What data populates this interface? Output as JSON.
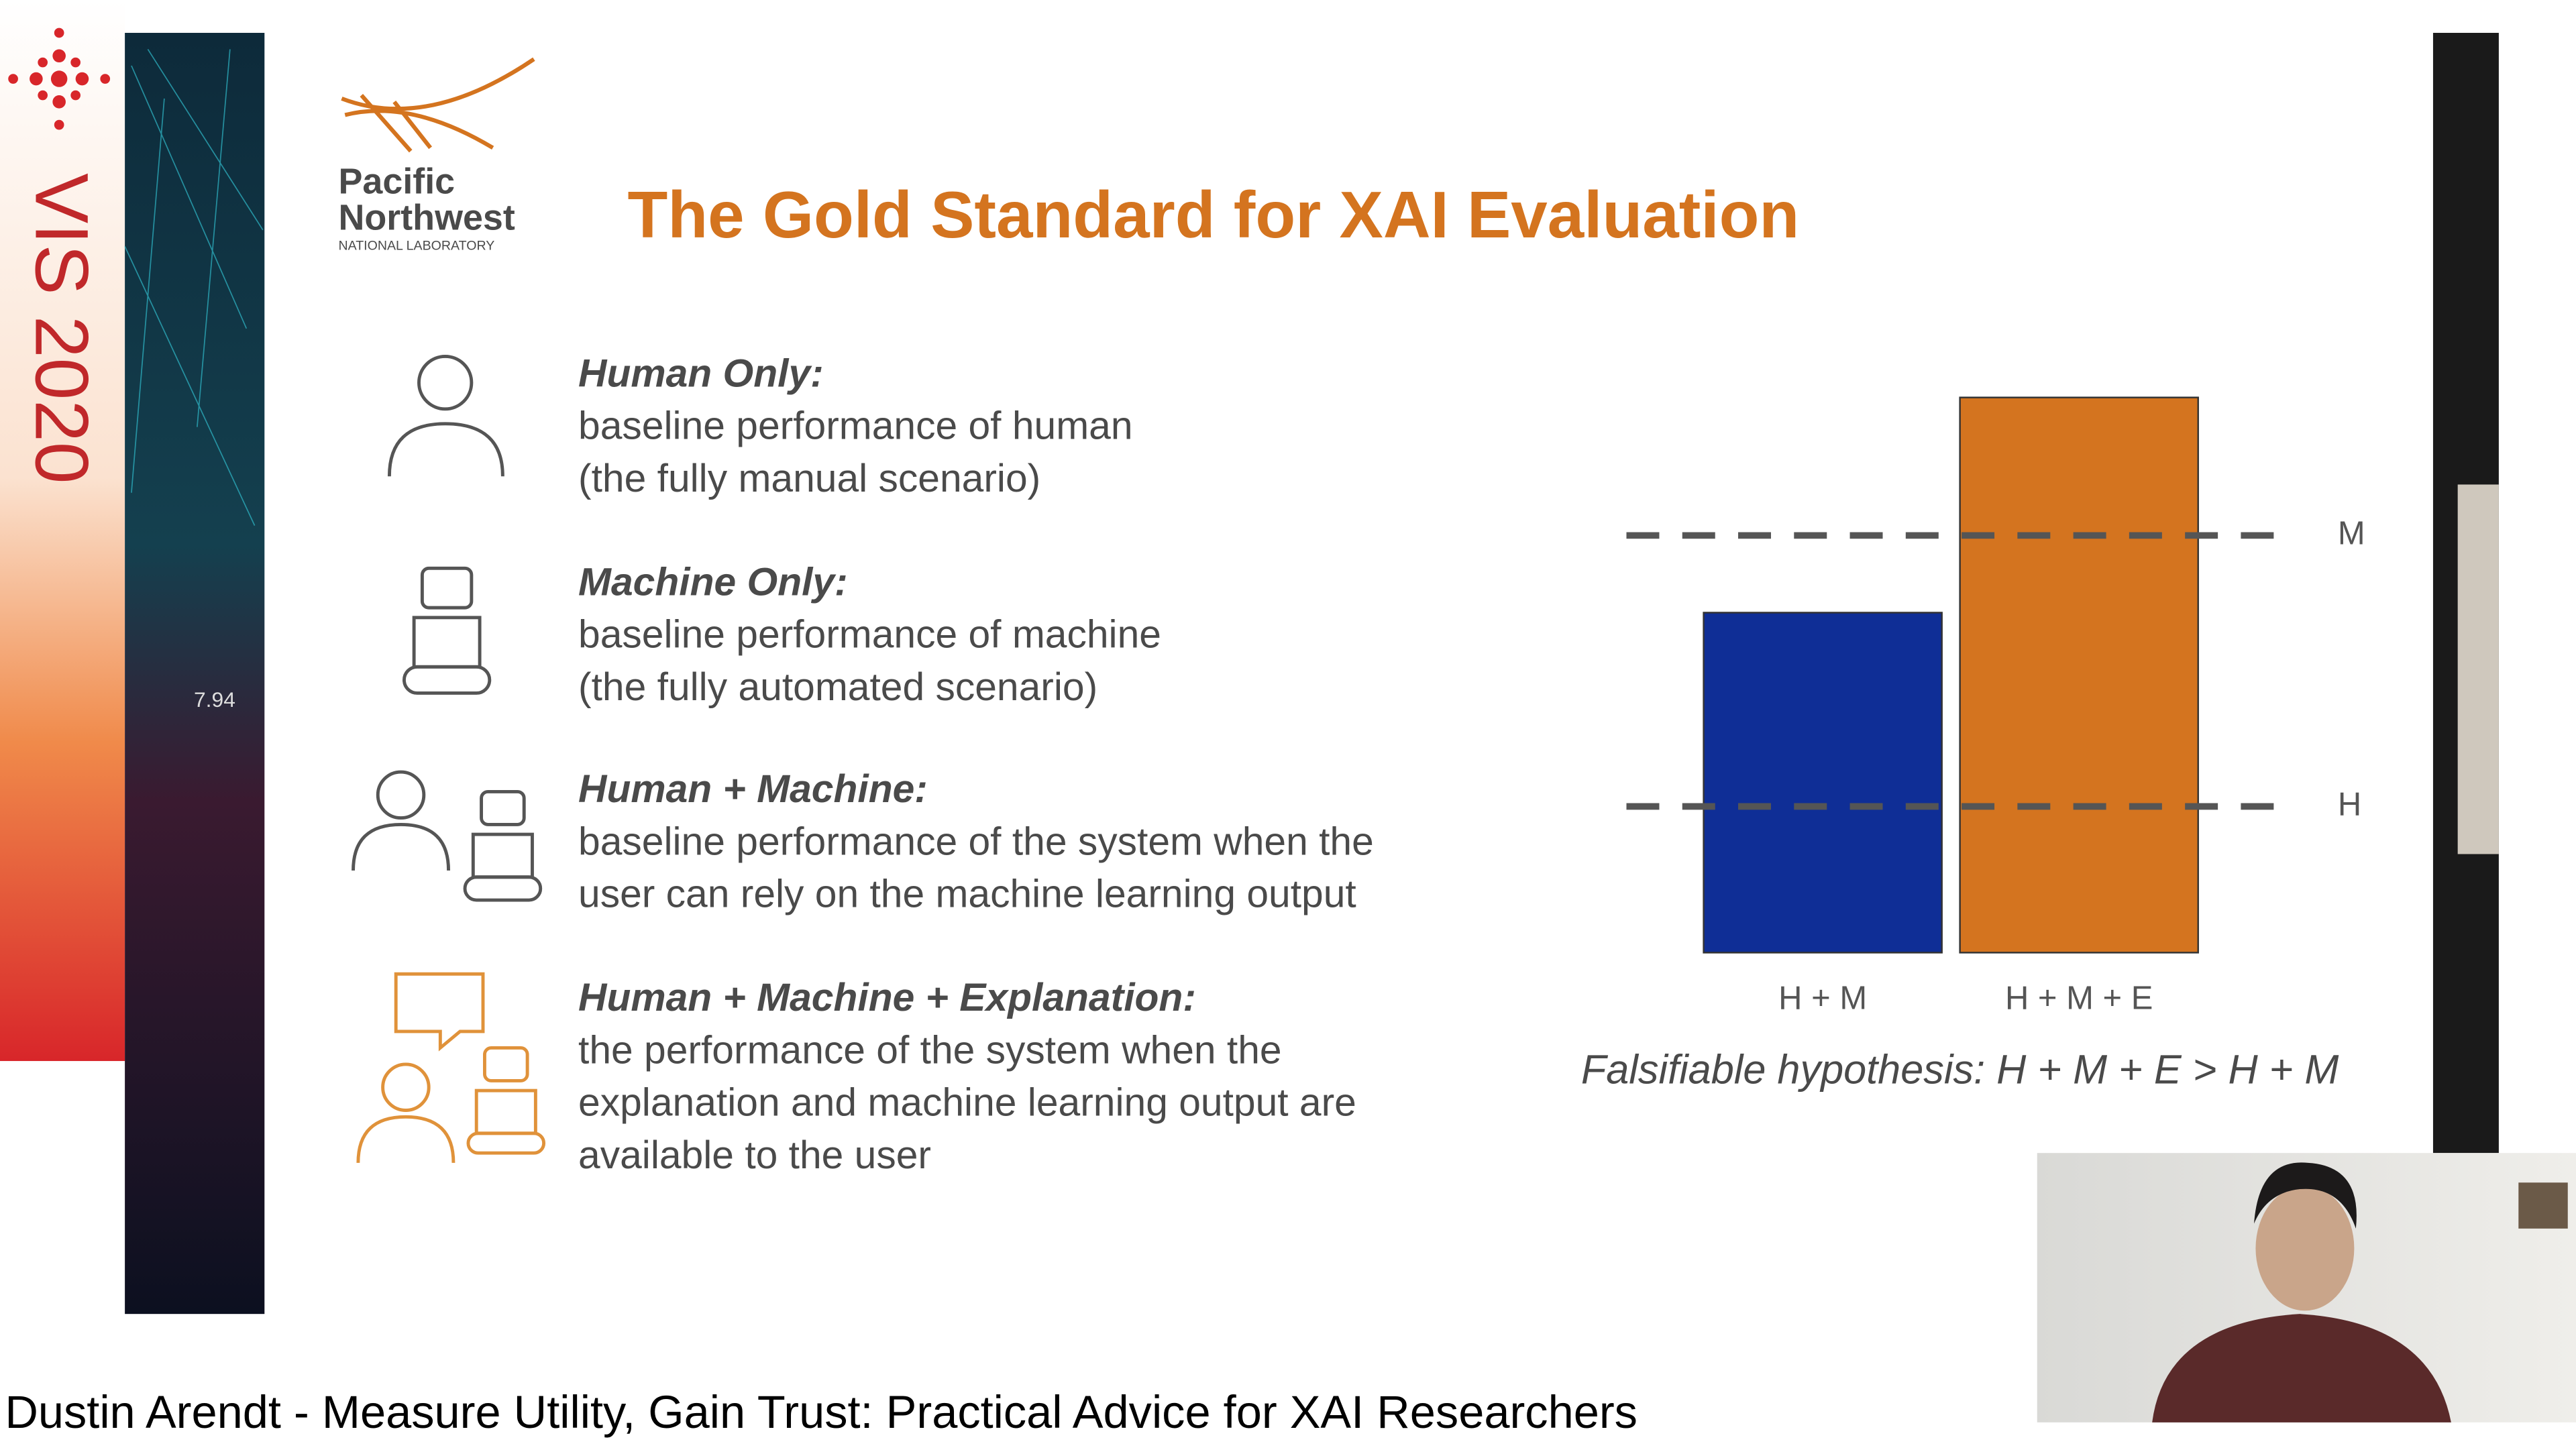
{
  "banner": {
    "text": "VIS 2020",
    "strip_label": "7.94"
  },
  "logo": {
    "line1": "Pacific",
    "line2": "Northwest",
    "sub": "NATIONAL LABORATORY"
  },
  "slide": {
    "title": "The Gold Standard for XAI Evaluation",
    "items": [
      {
        "heading": "Human Only:",
        "lines": [
          "baseline performance of human",
          "(the fully manual scenario)"
        ]
      },
      {
        "heading": "Machine Only:",
        "lines": [
          "baseline performance of machine",
          "(the fully automated scenario)"
        ]
      },
      {
        "heading": "Human + Machine:",
        "lines": [
          "baseline performance of the system when the",
          "user can rely on the machine learning output"
        ]
      },
      {
        "heading": "Human + Machine + Explanation:",
        "lines": [
          "the performance of the system when the",
          "explanation and machine learning output are",
          "available to the user"
        ]
      }
    ]
  },
  "chart_data": {
    "type": "bar",
    "categories": [
      "H + M",
      "H + M + E"
    ],
    "values": [
      207,
      338
    ],
    "colors": [
      "#0f2e96",
      "#d4741f"
    ],
    "ylim": [
      0,
      350
    ],
    "reference_lines": [
      {
        "label": "M",
        "value": 254
      },
      {
        "label": "H",
        "value": 89
      }
    ],
    "caption": "Falsifiable hypothesis: H + M + E > H + M"
  },
  "caption": "Dustin Arendt - Measure Utility, Gain Trust: Practical Advice for XAI Researchers"
}
